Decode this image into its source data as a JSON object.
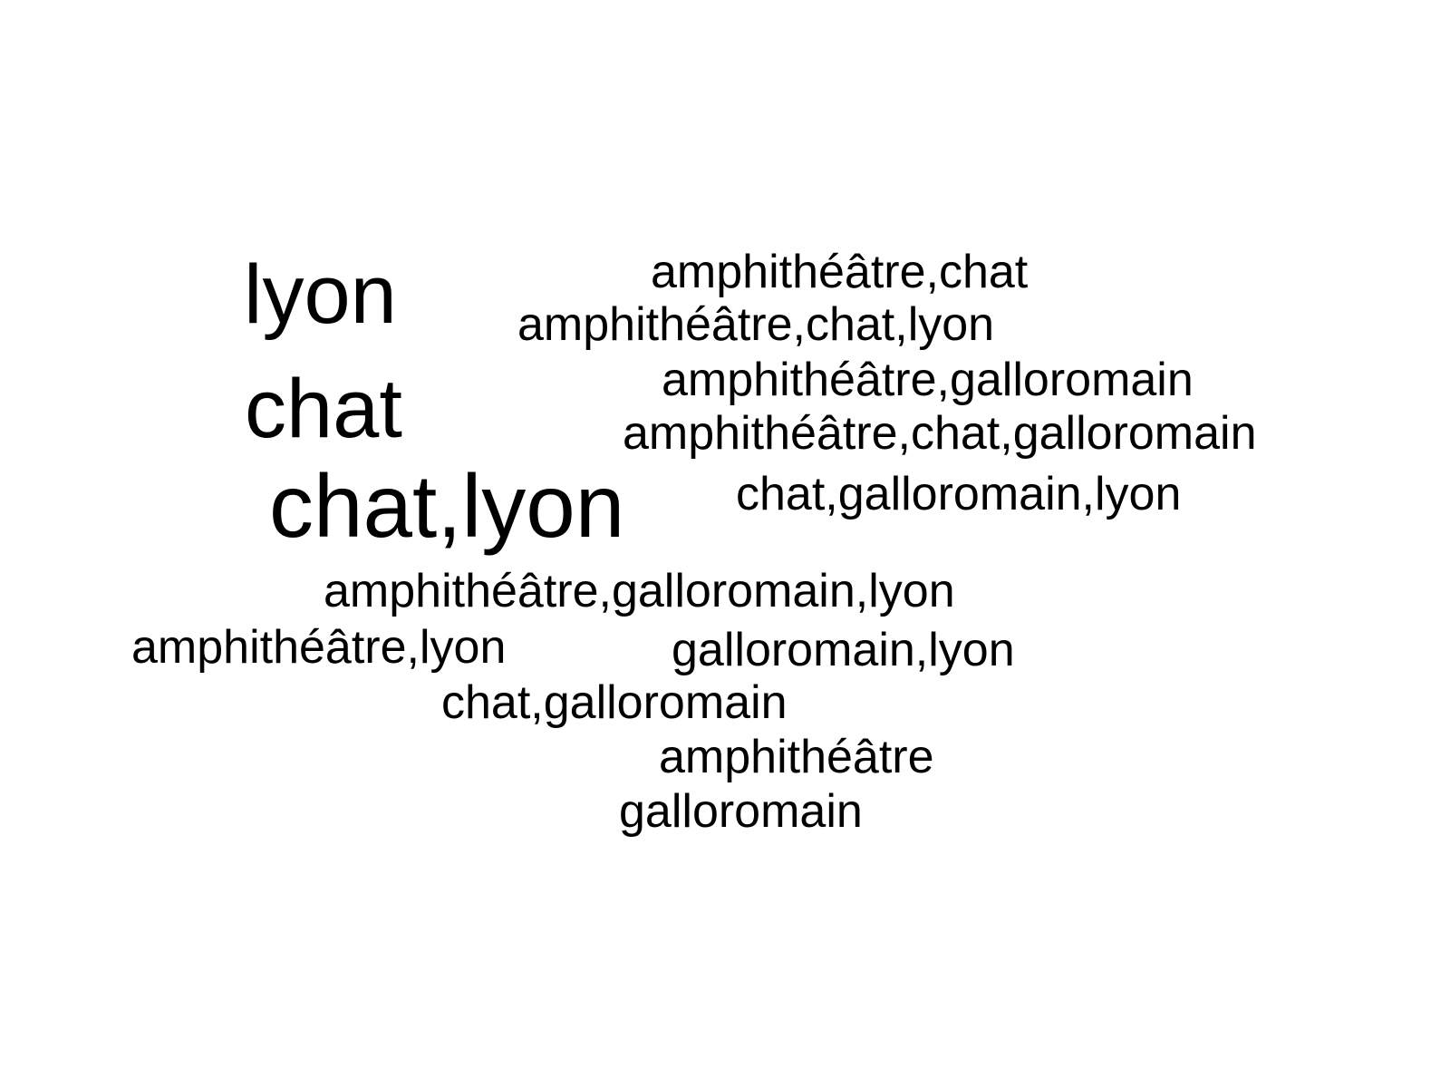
{
  "word_cloud": {
    "words": [
      {
        "text": "lyon"
      },
      {
        "text": "chat"
      },
      {
        "text": "chat,lyon"
      },
      {
        "text": "amphithéâtre,chat"
      },
      {
        "text": "amphithéâtre,chat,lyon"
      },
      {
        "text": "amphithéâtre,galloromain"
      },
      {
        "text": "amphithéâtre,chat,galloromain"
      },
      {
        "text": "chat,galloromain,lyon"
      },
      {
        "text": "amphithéâtre,galloromain,lyon"
      },
      {
        "text": "amphithéâtre,lyon"
      },
      {
        "text": "galloromain,lyon"
      },
      {
        "text": "chat,galloromain"
      },
      {
        "text": "amphithéâtre"
      },
      {
        "text": "galloromain"
      }
    ]
  }
}
